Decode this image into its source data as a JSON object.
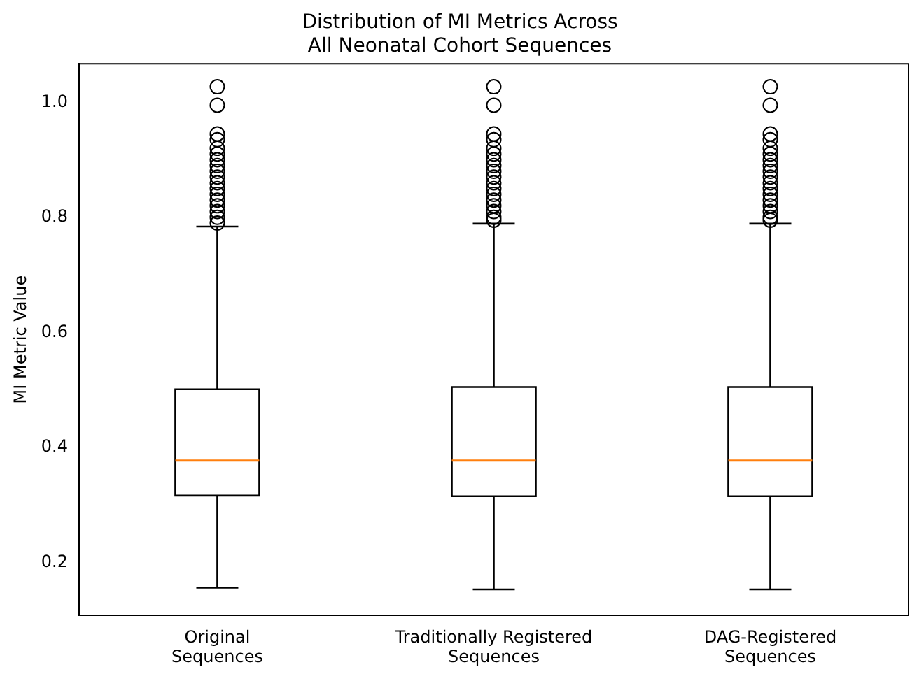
{
  "chart_data": {
    "type": "box",
    "title": "Distribution of MI Metrics Across\nAll Neonatal Cohort Sequences",
    "ylabel": "MI Metric Value",
    "categories": [
      "Original\nSequences",
      "Traditionally Registered\nSequences",
      "DAG-Registered\nSequences"
    ],
    "boxes": [
      {
        "low": 0.156,
        "q1": 0.316,
        "median": 0.377,
        "q3": 0.501,
        "high": 0.784,
        "outliers": [
          1.027,
          0.995,
          0.945,
          0.935,
          0.92,
          0.91,
          0.9,
          0.89,
          0.88,
          0.87,
          0.86,
          0.85,
          0.84,
          0.83,
          0.82,
          0.81,
          0.8,
          0.79
        ]
      },
      {
        "low": 0.153,
        "q1": 0.315,
        "median": 0.377,
        "q3": 0.505,
        "high": 0.789,
        "outliers": [
          1.027,
          0.995,
          0.945,
          0.935,
          0.92,
          0.91,
          0.9,
          0.89,
          0.88,
          0.87,
          0.86,
          0.85,
          0.84,
          0.83,
          0.82,
          0.81,
          0.8,
          0.795
        ]
      },
      {
        "low": 0.153,
        "q1": 0.315,
        "median": 0.377,
        "q3": 0.505,
        "high": 0.789,
        "outliers": [
          1.027,
          0.995,
          0.945,
          0.935,
          0.92,
          0.91,
          0.9,
          0.89,
          0.88,
          0.87,
          0.86,
          0.85,
          0.84,
          0.83,
          0.82,
          0.81,
          0.8,
          0.795
        ]
      }
    ],
    "ylim": [
      0.108,
      1.067
    ],
    "yticks": [
      0.2,
      0.4,
      0.6,
      0.8,
      {
        "value": 1,
        "label": "1.0"
      }
    ],
    "grid": false,
    "legend": false
  }
}
